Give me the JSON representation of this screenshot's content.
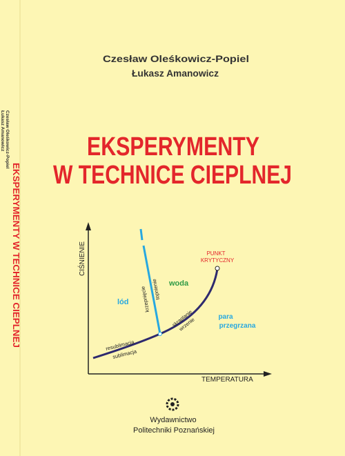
{
  "authors": [
    "Czesław Oleśkowicz-Popiel",
    "Łukasz Amanowicz"
  ],
  "title": [
    "EKSPERYMENTY",
    "W TECHNICE CIEPLNEJ"
  ],
  "spine": {
    "authors": [
      "Czesław Oleśkowicz-Popiel",
      "Łukasz Amanowicz"
    ],
    "title": "EKSPERYMENTY W TECHNICE CIEPLNEJ"
  },
  "diagram": {
    "y_axis": "CIŚNIENIE",
    "x_axis": "TEMPERATURA",
    "critical_point": [
      "PUNKT",
      "KRYTYCZNY"
    ],
    "phases": {
      "ice": "lód",
      "water": "woda",
      "vapor": [
        "para",
        "przegrzana"
      ]
    },
    "curves": {
      "melting": [
        "krzepnięcie",
        "topnienie"
      ],
      "boiling": [
        "skraplanie",
        "wrzenie"
      ],
      "sublimation": [
        "resublimacja",
        "sublimacja"
      ]
    }
  },
  "publisher": [
    "Wydawnictwo",
    "Politechniki Poznańskiej"
  ]
}
